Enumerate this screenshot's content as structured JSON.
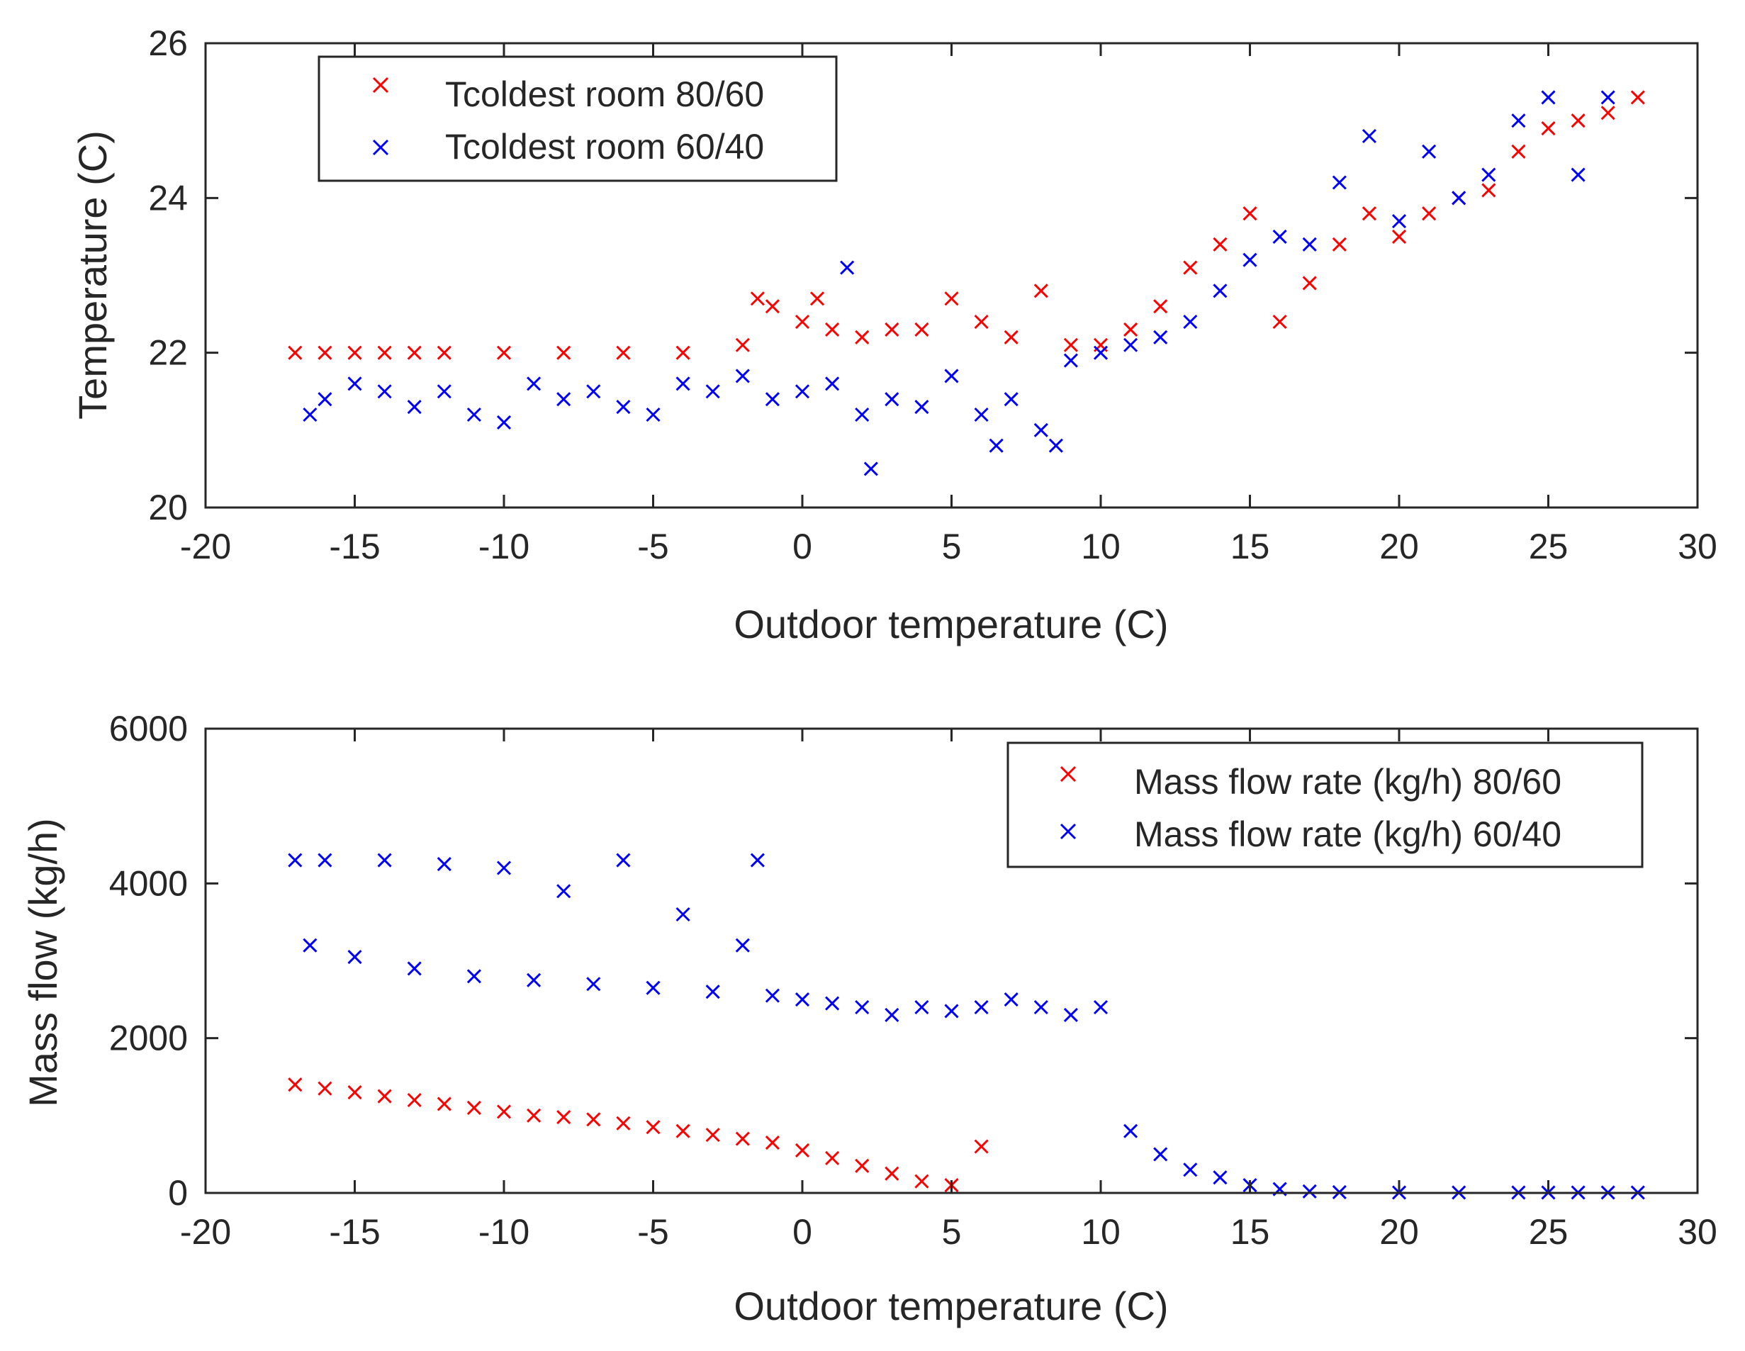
{
  "chart_data": [
    {
      "type": "scatter",
      "title": "",
      "xlabel": "Outdoor temperature (C)",
      "ylabel": "Temperature (C)",
      "xlim": [
        -20,
        30
      ],
      "ylim": [
        20,
        26
      ],
      "xticks": [
        -20,
        -15,
        -10,
        -5,
        0,
        5,
        10,
        15,
        20,
        25,
        30
      ],
      "yticks": [
        20,
        22,
        24,
        26
      ],
      "xtick_labels": [
        "-20",
        "-15",
        "-10",
        "-5",
        "0",
        "5",
        "10",
        "15",
        "20",
        "25",
        "30"
      ],
      "ytick_labels": [
        "20",
        "22",
        "24",
        "26"
      ],
      "legend_position": "top-left",
      "series": [
        {
          "name": "Tcoldest room 80/60",
          "color": "#ff0000",
          "marker": "x",
          "x": [
            -17,
            -16,
            -15,
            -14,
            -13,
            -12,
            -10,
            -8,
            -6,
            -4,
            -2,
            -1.5,
            -1,
            0,
            0.5,
            1,
            2,
            3,
            4,
            5,
            6,
            7,
            8,
            9,
            10,
            11,
            12,
            13,
            14,
            15,
            16,
            17,
            18,
            19,
            20,
            21,
            22,
            23,
            24,
            25,
            26,
            27,
            28
          ],
          "y": [
            22.0,
            22.0,
            22.0,
            22.0,
            22.0,
            22.0,
            22.0,
            22.0,
            22.0,
            22.0,
            22.1,
            22.7,
            22.6,
            22.4,
            22.7,
            22.3,
            22.2,
            22.3,
            22.3,
            22.7,
            22.4,
            22.2,
            22.8,
            22.1,
            22.1,
            22.3,
            22.6,
            23.1,
            23.4,
            23.8,
            22.4,
            22.9,
            23.4,
            23.8,
            23.5,
            23.8,
            24.0,
            24.1,
            24.6,
            24.9,
            25.0,
            25.1,
            25.3
          ]
        },
        {
          "name": "Tcoldest room 60/40",
          "color": "#0000ff",
          "marker": "x",
          "x": [
            -16.5,
            -16,
            -15,
            -14,
            -13,
            -12,
            -11,
            -10,
            -9,
            -8,
            -7,
            -6,
            -5,
            -4,
            -3,
            -2,
            -1,
            0,
            1,
            1.5,
            2,
            2.3,
            3,
            4,
            5,
            6,
            6.5,
            7,
            8,
            8.5,
            9,
            10,
            11,
            12,
            13,
            14,
            15,
            16,
            17,
            18,
            19,
            20,
            21,
            22,
            23,
            24,
            25,
            26,
            27
          ],
          "y": [
            21.2,
            21.4,
            21.6,
            21.5,
            21.3,
            21.5,
            21.2,
            21.1,
            21.6,
            21.4,
            21.5,
            21.3,
            21.2,
            21.6,
            21.5,
            21.7,
            21.4,
            21.5,
            21.6,
            23.1,
            21.2,
            20.5,
            21.4,
            21.3,
            21.7,
            21.2,
            20.8,
            21.4,
            21.0,
            20.8,
            21.9,
            22.0,
            22.1,
            22.2,
            22.4,
            22.8,
            23.2,
            23.5,
            23.4,
            24.2,
            24.8,
            23.7,
            24.6,
            24.0,
            24.3,
            25.0,
            25.3,
            24.3,
            25.3
          ]
        }
      ]
    },
    {
      "type": "scatter",
      "title": "",
      "xlabel": "Outdoor temperature (C)",
      "ylabel": "Mass flow (kg/h)",
      "xlim": [
        -20,
        30
      ],
      "ylim": [
        0,
        6000
      ],
      "xticks": [
        -20,
        -15,
        -10,
        -5,
        0,
        5,
        10,
        15,
        20,
        25,
        30
      ],
      "yticks": [
        0,
        2000,
        4000,
        6000
      ],
      "xtick_labels": [
        "-20",
        "-15",
        "-10",
        "-5",
        "0",
        "5",
        "10",
        "15",
        "20",
        "25",
        "30"
      ],
      "ytick_labels": [
        "0",
        "2000",
        "4000",
        "6000"
      ],
      "legend_position": "top-right",
      "series": [
        {
          "name": "Mass flow rate (kg/h) 80/60",
          "color": "#ff0000",
          "marker": "x",
          "x": [
            -17,
            -16,
            -15,
            -14,
            -13,
            -12,
            -11,
            -10,
            -9,
            -8,
            -7,
            -6,
            -5,
            -4,
            -3,
            -2,
            -1,
            0,
            1,
            2,
            3,
            4,
            5,
            6
          ],
          "y": [
            1400,
            1350,
            1300,
            1250,
            1200,
            1150,
            1100,
            1050,
            1000,
            980,
            950,
            900,
            850,
            800,
            750,
            700,
            650,
            550,
            450,
            350,
            250,
            150,
            100,
            600
          ]
        },
        {
          "name": "Mass flow rate (kg/h) 60/40",
          "color": "#0000ff",
          "marker": "x",
          "x": [
            -17,
            -16.5,
            -16,
            -15,
            -14,
            -13,
            -12,
            -11,
            -10,
            -9,
            -8,
            -7,
            -6,
            -5,
            -4,
            -3,
            -2,
            -1.5,
            -1,
            0,
            1,
            2,
            3,
            4,
            5,
            6,
            7,
            8,
            9,
            10,
            11,
            12,
            13,
            14,
            15,
            16,
            17,
            18,
            20,
            22,
            24,
            25,
            26,
            27,
            28
          ],
          "y": [
            4300,
            3200,
            4300,
            3050,
            4300,
            2900,
            4250,
            2800,
            4200,
            2750,
            3900,
            2700,
            4300,
            2650,
            3600,
            2600,
            3200,
            4300,
            2550,
            2500,
            2450,
            2400,
            2300,
            2400,
            2350,
            2400,
            2500,
            2400,
            2300,
            2400,
            800,
            500,
            300,
            200,
            100,
            50,
            20,
            10,
            5,
            5,
            5,
            5,
            5,
            5,
            5
          ]
        }
      ]
    }
  ]
}
